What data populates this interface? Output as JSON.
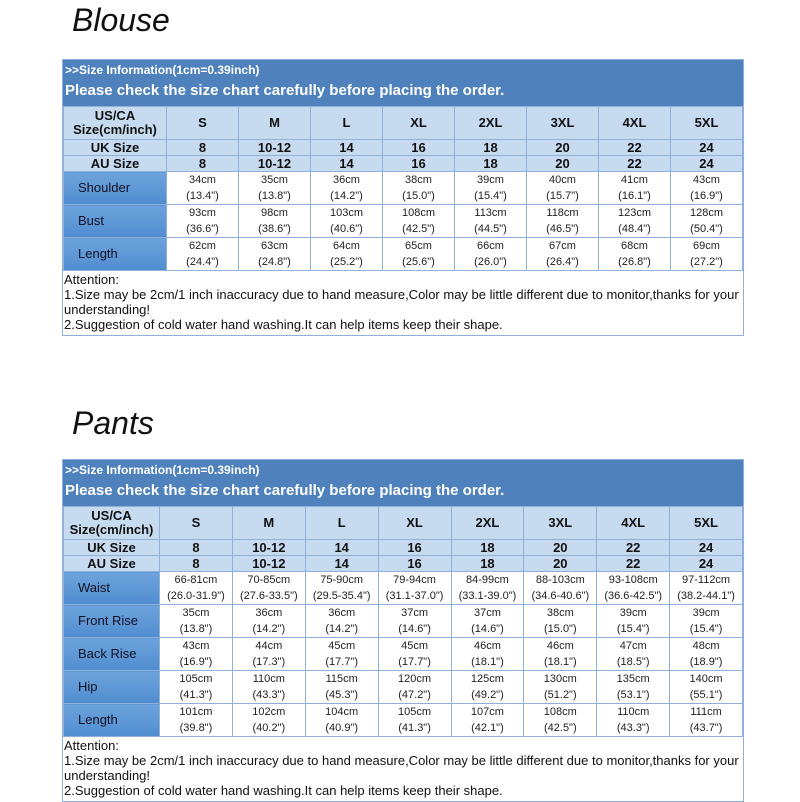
{
  "blouse": {
    "title": "Blouse",
    "header_line1": ">>Size Information(1cm=0.39inch)",
    "header_line2": "Please check the size chart carefully before placing the order.",
    "size_label": "US/CA Size(cm/inch)",
    "sizes": [
      "S",
      "M",
      "L",
      "XL",
      "2XL",
      "3XL",
      "4XL",
      "5XL"
    ],
    "uk_label": "UK Size",
    "uk": [
      "8",
      "10-12",
      "14",
      "16",
      "18",
      "20",
      "22",
      "24"
    ],
    "au_label": "AU Size",
    "au": [
      "8",
      "10-12",
      "14",
      "16",
      "18",
      "20",
      "22",
      "24"
    ],
    "rows": [
      {
        "label": "Shoulder",
        "cm": [
          "34cm",
          "35cm",
          "36cm",
          "38cm",
          "39cm",
          "40cm",
          "41cm",
          "43cm"
        ],
        "inch": [
          "(13.4\")",
          "(13.8\")",
          "(14.2\")",
          "(15.0\")",
          "(15.4\")",
          "(15.7\")",
          "(16.1\")",
          "(16.9\")"
        ]
      },
      {
        "label": "Bust",
        "cm": [
          "93cm",
          "98cm",
          "103cm",
          "108cm",
          "113cm",
          "118cm",
          "123cm",
          "128cm"
        ],
        "inch": [
          "(36.6\")",
          "(38.6\")",
          "(40.6\")",
          "(42.5\")",
          "(44.5\")",
          "(46.5\")",
          "(48.4\")",
          "(50.4\")"
        ]
      },
      {
        "label": "Length",
        "cm": [
          "62cm",
          "63cm",
          "64cm",
          "65cm",
          "66cm",
          "67cm",
          "68cm",
          "69cm"
        ],
        "inch": [
          "(24.4\")",
          "(24.8\")",
          "(25.2\")",
          "(25.6\")",
          "(26.0\")",
          "(26.4\")",
          "(26.8\")",
          "(27.2\")"
        ]
      }
    ],
    "attention": [
      "Attention:",
      "1.Size may be 2cm/1 inch inaccuracy due to hand measure,Color may be little different due to monitor,thanks for your understanding!",
      "2.Suggestion of cold water hand washing.It can help items keep their shape."
    ]
  },
  "pants": {
    "title": "Pants",
    "header_line1": ">>Size Information(1cm=0.39inch)",
    "header_line2": "Please check the size chart carefully before placing the order.",
    "size_label": "US/CA Size(cm/inch)",
    "sizes": [
      "S",
      "M",
      "L",
      "XL",
      "2XL",
      "3XL",
      "4XL",
      "5XL"
    ],
    "uk_label": "UK Size",
    "uk": [
      "8",
      "10-12",
      "14",
      "16",
      "18",
      "20",
      "22",
      "24"
    ],
    "au_label": "AU Size",
    "au": [
      "8",
      "10-12",
      "14",
      "16",
      "18",
      "20",
      "22",
      "24"
    ],
    "rows": [
      {
        "label": "Waist",
        "cm": [
          "66-81cm",
          "70-85cm",
          "75-90cm",
          "79-94cm",
          "84-99cm",
          "88-103cm",
          "93-108cm",
          "97-112cm"
        ],
        "inch": [
          "(26.0-31.9\")",
          "(27.6-33.5\")",
          "(29.5-35.4\")",
          "(31.1-37.0\")",
          "(33.1-39.0\")",
          "(34.6-40.6\")",
          "(36.6-42.5\")",
          "(38.2-44.1\")"
        ]
      },
      {
        "label": "Front Rise",
        "cm": [
          "35cm",
          "36cm",
          "36cm",
          "37cm",
          "37cm",
          "38cm",
          "39cm",
          "39cm"
        ],
        "inch": [
          "(13.8\")",
          "(14.2\")",
          "(14.2\")",
          "(14.6\")",
          "(14.6\")",
          "(15.0\")",
          "(15.4\")",
          "(15.4\")"
        ]
      },
      {
        "label": "Back Rise",
        "cm": [
          "43cm",
          "44cm",
          "45cm",
          "45cm",
          "46cm",
          "46cm",
          "47cm",
          "48cm"
        ],
        "inch": [
          "(16.9\")",
          "(17.3\")",
          "(17.7\")",
          "(17.7\")",
          "(18.1\")",
          "(18.1\")",
          "(18.5\")",
          "(18.9\")"
        ]
      },
      {
        "label": "Hip",
        "cm": [
          "105cm",
          "110cm",
          "115cm",
          "120cm",
          "125cm",
          "130cm",
          "135cm",
          "140cm"
        ],
        "inch": [
          "(41.3\")",
          "(43.3\")",
          "(45.3\")",
          "(47.2\")",
          "(49.2\")",
          "(51.2\")",
          "(53.1\")",
          "(55.1\")"
        ]
      },
      {
        "label": "Length",
        "cm": [
          "101cm",
          "102cm",
          "104cm",
          "105cm",
          "107cm",
          "108cm",
          "110cm",
          "111cm"
        ],
        "inch": [
          "(39.8\")",
          "(40.2\")",
          "(40.9\")",
          "(41.3\")",
          "(42.1\")",
          "(42.5\")",
          "(43.3\")",
          "(43.7\")"
        ]
      }
    ],
    "attention": [
      "Attention:",
      "1.Size may be 2cm/1 inch inaccuracy due to hand measure,Color may be little different due to monitor,thanks for your understanding!",
      "2.Suggestion of cold water hand washing.It can help items keep their shape."
    ]
  }
}
